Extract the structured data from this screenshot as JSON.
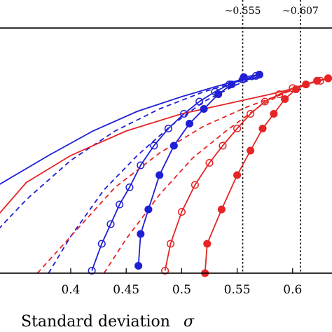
{
  "chart_data": {
    "type": "line",
    "title": "",
    "xlabel": "Standard deviation",
    "xlabel_symbol": "σ",
    "ylabel": "",
    "xlim": [
      0.335,
      0.638
    ],
    "ylim": [
      0.0,
      1.0
    ],
    "grid": false,
    "x_ticks": [
      {
        "value": 0.4,
        "label": "0.4"
      },
      {
        "value": 0.45,
        "label": "0.45"
      },
      {
        "value": 0.5,
        "label": "0.5"
      },
      {
        "value": 0.55,
        "label": "0.55"
      },
      {
        "value": 0.6,
        "label": "0.6"
      }
    ],
    "reference_lines": [
      {
        "x": 0.555,
        "label": "~0.555",
        "color": "#000000",
        "style": "dotted"
      },
      {
        "x": 0.607,
        "label": "~0.607",
        "color": "#000000",
        "style": "dotted"
      }
    ],
    "series": [
      {
        "color": "#1f1fd6",
        "style": "solid",
        "marker": "none",
        "points": [
          [
            0.335,
            0.36
          ],
          [
            0.38,
            0.48
          ],
          [
            0.42,
            0.58
          ],
          [
            0.46,
            0.66
          ],
          [
            0.5,
            0.72
          ],
          [
            0.53,
            0.76
          ],
          [
            0.55,
            0.785
          ],
          [
            0.57,
            0.8
          ]
        ]
      },
      {
        "color": "#1f1fd6",
        "style": "dashed",
        "marker": "none",
        "points": [
          [
            0.335,
            0.18
          ],
          [
            0.36,
            0.3
          ],
          [
            0.4,
            0.46
          ],
          [
            0.44,
            0.58
          ],
          [
            0.48,
            0.67
          ],
          [
            0.52,
            0.74
          ],
          [
            0.55,
            0.78
          ],
          [
            0.57,
            0.8
          ]
        ]
      },
      {
        "color": "#1f1fd6",
        "style": "dashed",
        "marker": "none",
        "points": [
          [
            0.38,
            0.0
          ],
          [
            0.4,
            0.15
          ],
          [
            0.43,
            0.34
          ],
          [
            0.46,
            0.48
          ],
          [
            0.49,
            0.6
          ],
          [
            0.52,
            0.7
          ],
          [
            0.55,
            0.77
          ],
          [
            0.57,
            0.8
          ]
        ]
      },
      {
        "color": "#1f1fd6",
        "style": "solid",
        "marker": "open",
        "points": [
          [
            0.419,
            0.01
          ],
          [
            0.428,
            0.12
          ],
          [
            0.436,
            0.2
          ],
          [
            0.444,
            0.28
          ],
          [
            0.453,
            0.35
          ],
          [
            0.463,
            0.44
          ],
          [
            0.475,
            0.52
          ],
          [
            0.488,
            0.59
          ],
          [
            0.502,
            0.65
          ],
          [
            0.516,
            0.7
          ],
          [
            0.53,
            0.74
          ],
          [
            0.543,
            0.77
          ],
          [
            0.555,
            0.79
          ],
          [
            0.567,
            0.805
          ],
          [
            0.57,
            0.81
          ]
        ]
      },
      {
        "color": "#1f1fd6",
        "style": "solid",
        "marker": "filled",
        "points": [
          [
            0.461,
            0.03
          ],
          [
            0.463,
            0.16
          ],
          [
            0.47,
            0.26
          ],
          [
            0.48,
            0.4
          ],
          [
            0.493,
            0.52
          ],
          [
            0.507,
            0.61
          ],
          [
            0.52,
            0.67
          ],
          [
            0.533,
            0.73
          ],
          [
            0.545,
            0.77
          ],
          [
            0.556,
            0.8
          ],
          [
            0.57,
            0.81
          ]
        ]
      },
      {
        "color": "#e62525",
        "style": "solid",
        "marker": "none",
        "points": [
          [
            0.335,
            0.24
          ],
          [
            0.36,
            0.37
          ],
          [
            0.4,
            0.48
          ],
          [
            0.45,
            0.58
          ],
          [
            0.5,
            0.65
          ],
          [
            0.55,
            0.7
          ],
          [
            0.58,
            0.73
          ],
          [
            0.607,
            0.76
          ]
        ]
      },
      {
        "color": "#e62525",
        "style": "dashed",
        "marker": "none",
        "points": [
          [
            0.37,
            0.0
          ],
          [
            0.4,
            0.15
          ],
          [
            0.44,
            0.35
          ],
          [
            0.48,
            0.49
          ],
          [
            0.52,
            0.6
          ],
          [
            0.56,
            0.68
          ],
          [
            0.59,
            0.73
          ],
          [
            0.607,
            0.76
          ]
        ]
      },
      {
        "color": "#e62525",
        "style": "dashed",
        "marker": "none",
        "points": [
          [
            0.43,
            0.0
          ],
          [
            0.45,
            0.14
          ],
          [
            0.48,
            0.32
          ],
          [
            0.51,
            0.47
          ],
          [
            0.54,
            0.58
          ],
          [
            0.57,
            0.68
          ],
          [
            0.59,
            0.73
          ],
          [
            0.607,
            0.76
          ]
        ]
      },
      {
        "color": "#e62525",
        "style": "solid",
        "marker": "open",
        "points": [
          [
            0.485,
            0.01
          ],
          [
            0.49,
            0.12
          ],
          [
            0.5,
            0.25
          ],
          [
            0.512,
            0.36
          ],
          [
            0.525,
            0.45
          ],
          [
            0.537,
            0.52
          ],
          [
            0.55,
            0.59
          ],
          [
            0.562,
            0.65
          ],
          [
            0.575,
            0.7
          ],
          [
            0.588,
            0.73
          ],
          [
            0.6,
            0.755
          ],
          [
            0.612,
            0.77
          ],
          [
            0.625,
            0.785
          ],
          [
            0.632,
            0.795
          ]
        ]
      },
      {
        "color": "#e62525",
        "style": "solid",
        "marker": "filled",
        "points": [
          [
            0.521,
            0.0
          ],
          [
            0.523,
            0.12
          ],
          [
            0.536,
            0.26
          ],
          [
            0.55,
            0.4
          ],
          [
            0.562,
            0.5
          ],
          [
            0.573,
            0.59
          ],
          [
            0.583,
            0.65
          ],
          [
            0.593,
            0.71
          ],
          [
            0.603,
            0.75
          ],
          [
            0.612,
            0.77
          ],
          [
            0.622,
            0.785
          ],
          [
            0.632,
            0.795
          ]
        ]
      }
    ]
  }
}
